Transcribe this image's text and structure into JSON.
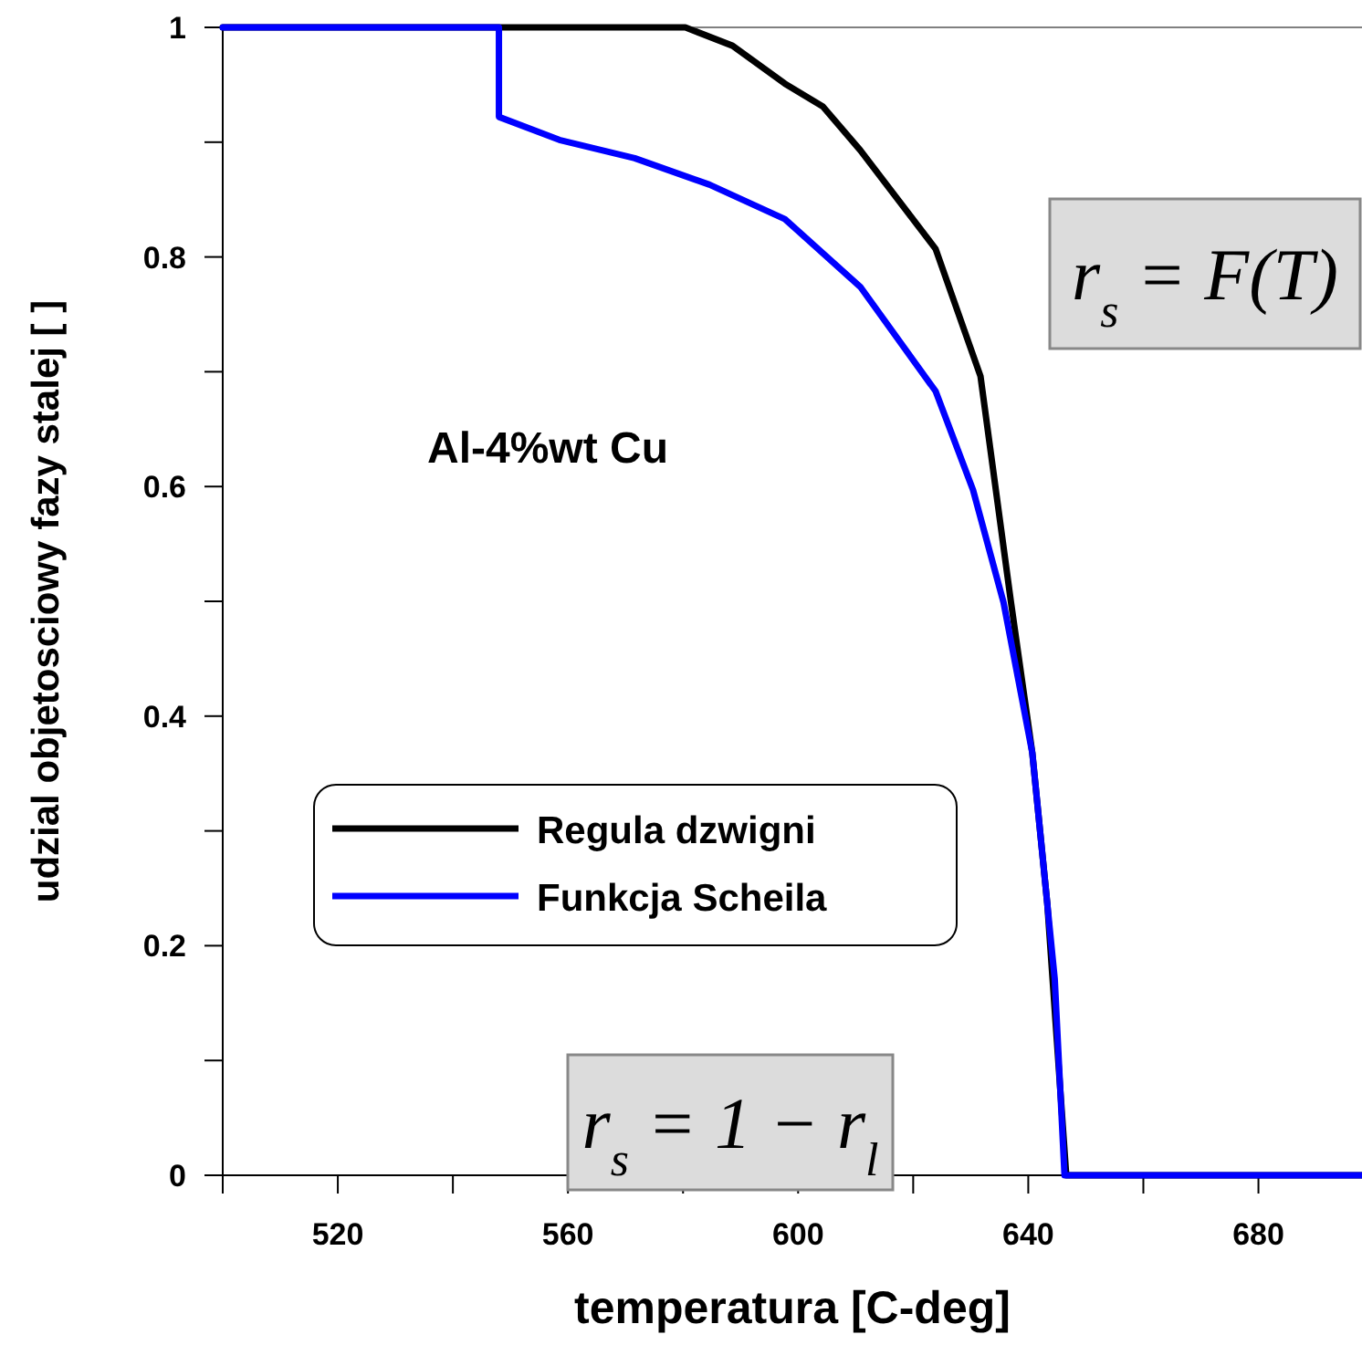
{
  "chart_data": {
    "type": "line",
    "xlabel": "temperatura [C-deg]",
    "ylabel": "udzial objetosciowy fazy stalej [ ]",
    "xlim": [
      500,
      698
    ],
    "ylim": [
      0,
      1
    ],
    "xticks": [
      {
        "value": 500,
        "label": null
      },
      520,
      {
        "value": 540,
        "label": null
      },
      560,
      {
        "value": 580,
        "label": null
      },
      600,
      {
        "value": 620,
        "label": null
      },
      640,
      {
        "value": 660,
        "label": null
      },
      680
    ],
    "yticks": [
      0,
      {
        "value": 0.1,
        "label": null
      },
      0.2,
      {
        "value": 0.3,
        "label": null
      },
      0.4,
      {
        "value": 0.5,
        "label": null
      },
      0.6,
      {
        "value": 0.7,
        "label": null
      },
      0.8,
      {
        "value": 0.9,
        "label": null
      },
      1
    ],
    "grid": false,
    "legend": "left",
    "marker": "none",
    "line_style": "solid",
    "annotations": [
      "Al-4%wt Cu",
      "r$_{s}$ = F(T)",
      "r$_{s}$ = 1 − r$_{l}$"
    ],
    "series": [
      {
        "name": "Regula dzwigni",
        "color": "#000000",
        "x": [
          500,
          580.4,
          588.6,
          597.7,
          604.3,
          610.8,
          623.9,
          631.7,
          637.0,
          640.7,
          643.3,
          646.6,
          698
        ],
        "values": [
          1,
          1,
          0.984,
          0.951,
          0.931,
          0.893,
          0.807,
          0.696,
          0.499,
          0.368,
          0.237,
          0,
          0
        ]
      },
      {
        "name": "Funkcja Scheila",
        "color": "#0000ff",
        "x": [
          500,
          548,
          548,
          558.5,
          571.6,
          584.6,
          597.7,
          610.8,
          623.9,
          630.4,
          635.7,
          640.7,
          644.6,
          646.3,
          698
        ],
        "values": [
          1,
          1,
          0.922,
          0.902,
          0.886,
          0.863,
          0.833,
          0.774,
          0.683,
          0.597,
          0.499,
          0.368,
          0.171,
          0,
          0
        ]
      }
    ]
  }
}
